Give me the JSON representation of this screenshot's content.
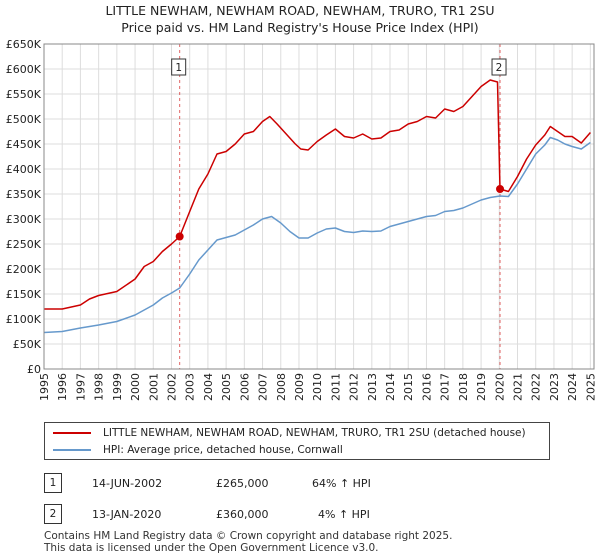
{
  "title": {
    "line1": "LITTLE NEWHAM, NEWHAM ROAD, NEWHAM, TRURO, TR1 2SU",
    "line2": "Price paid vs. HM Land Registry's House Price Index (HPI)"
  },
  "colors": {
    "price": "#cc0000",
    "hpi": "#6699cc",
    "grid": "#dddddd",
    "marker": "#cc0000",
    "vline": "#cc0000"
  },
  "legend": {
    "price_label": "LITTLE NEWHAM, NEWHAM ROAD, NEWHAM, TRURO, TR1 2SU (detached house)",
    "hpi_label": "HPI: Average price, detached house, Cornwall"
  },
  "sales": [
    {
      "num": "1",
      "date": "14-JUN-2002",
      "price": "£265,000",
      "hpi_change": "64% ↑ HPI"
    },
    {
      "num": "2",
      "date": "13-JAN-2020",
      "price": "£360,000",
      "hpi_change": "4% ↑ HPI"
    }
  ],
  "footer": {
    "line1": "Contains HM Land Registry data © Crown copyright and database right 2025.",
    "line2": "This data is licensed under the Open Government Licence v3.0."
  },
  "chart_data": {
    "type": "line",
    "title": "LITTLE NEWHAM, NEWHAM ROAD, NEWHAM, TRURO, TR1 2SU — Price paid vs. HM Land Registry's House Price Index (HPI)",
    "xlabel": "",
    "ylabel": "",
    "xlim": [
      1995,
      2025.2
    ],
    "ylim": [
      0,
      650000
    ],
    "yticks": [
      0,
      50000,
      100000,
      150000,
      200000,
      250000,
      300000,
      350000,
      400000,
      450000,
      500000,
      550000,
      600000,
      650000
    ],
    "ytick_labels": [
      "£0",
      "£50K",
      "£100K",
      "£150K",
      "£200K",
      "£250K",
      "£300K",
      "£350K",
      "£400K",
      "£450K",
      "£500K",
      "£550K",
      "£600K",
      "£650K"
    ],
    "xticks": [
      1995,
      1996,
      1997,
      1998,
      1999,
      2000,
      2001,
      2002,
      2003,
      2004,
      2005,
      2006,
      2007,
      2008,
      2009,
      2010,
      2011,
      2012,
      2013,
      2014,
      2015,
      2016,
      2017,
      2018,
      2019,
      2020,
      2021,
      2022,
      2023,
      2024,
      2025
    ],
    "grid": true,
    "legend_position": "below",
    "series": [
      {
        "name": "LITTLE NEWHAM, NEWHAM ROAD, NEWHAM, TRURO, TR1 2SU (detached house)",
        "x": [
          1995.0,
          1996.0,
          1997.0,
          1997.5,
          1998.0,
          1999.0,
          2000.0,
          2000.5,
          2001.0,
          2001.5,
          2002.0,
          2002.45,
          2003.0,
          2003.5,
          2004.0,
          2004.5,
          2005.0,
          2005.5,
          2006.0,
          2006.5,
          2007.0,
          2007.4,
          2007.8,
          2008.3,
          2008.8,
          2009.1,
          2009.5,
          2010.0,
          2010.5,
          2011.0,
          2011.5,
          2012.0,
          2012.5,
          2013.0,
          2013.5,
          2014.0,
          2014.5,
          2015.0,
          2015.5,
          2016.0,
          2016.5,
          2017.0,
          2017.5,
          2018.0,
          2018.5,
          2019.0,
          2019.5,
          2019.9,
          2020.04,
          2020.5,
          2021.0,
          2021.5,
          2022.0,
          2022.5,
          2022.8,
          2023.2,
          2023.6,
          2024.0,
          2024.5,
          2025.0
        ],
        "y": [
          120000,
          120000,
          128000,
          140000,
          147000,
          155000,
          180000,
          205000,
          215000,
          235000,
          250000,
          265000,
          315000,
          360000,
          390000,
          430000,
          435000,
          450000,
          470000,
          475000,
          495000,
          505000,
          490000,
          470000,
          450000,
          440000,
          438000,
          455000,
          468000,
          480000,
          465000,
          462000,
          470000,
          460000,
          462000,
          475000,
          478000,
          490000,
          495000,
          505000,
          502000,
          520000,
          515000,
          525000,
          545000,
          565000,
          578000,
          574000,
          360000,
          355000,
          385000,
          420000,
          448000,
          468000,
          485000,
          475000,
          465000,
          465000,
          452000,
          473000
        ]
      },
      {
        "name": "HPI: Average price, detached house, Cornwall",
        "x": [
          1995.0,
          1996.0,
          1997.0,
          1998.0,
          1999.0,
          2000.0,
          2001.0,
          2001.5,
          2002.0,
          2002.45,
          2003.0,
          2003.5,
          2004.0,
          2004.5,
          2005.0,
          2005.5,
          2006.0,
          2006.5,
          2007.0,
          2007.5,
          2008.0,
          2008.5,
          2009.0,
          2009.5,
          2010.0,
          2010.5,
          2011.0,
          2011.5,
          2012.0,
          2012.5,
          2013.0,
          2013.5,
          2014.0,
          2014.5,
          2015.0,
          2015.5,
          2016.0,
          2016.5,
          2017.0,
          2017.5,
          2018.0,
          2018.5,
          2019.0,
          2019.5,
          2020.04,
          2020.5,
          2021.0,
          2021.5,
          2022.0,
          2022.5,
          2022.8,
          2023.2,
          2023.6,
          2024.0,
          2024.5,
          2025.0
        ],
        "y": [
          73000,
          75000,
          82000,
          88000,
          95000,
          108000,
          128000,
          142000,
          152000,
          162000,
          190000,
          218000,
          238000,
          258000,
          263000,
          268000,
          278000,
          288000,
          300000,
          305000,
          292000,
          275000,
          262000,
          262000,
          272000,
          280000,
          282000,
          275000,
          273000,
          276000,
          275000,
          276000,
          285000,
          290000,
          295000,
          300000,
          305000,
          307000,
          315000,
          317000,
          322000,
          330000,
          338000,
          343000,
          346000,
          345000,
          370000,
          400000,
          430000,
          448000,
          463000,
          458000,
          450000,
          445000,
          440000,
          453000
        ]
      }
    ],
    "annotations": [
      {
        "label": "1",
        "x": 2002.45,
        "y": 265000
      },
      {
        "label": "2",
        "x": 2020.04,
        "y": 360000
      }
    ]
  }
}
